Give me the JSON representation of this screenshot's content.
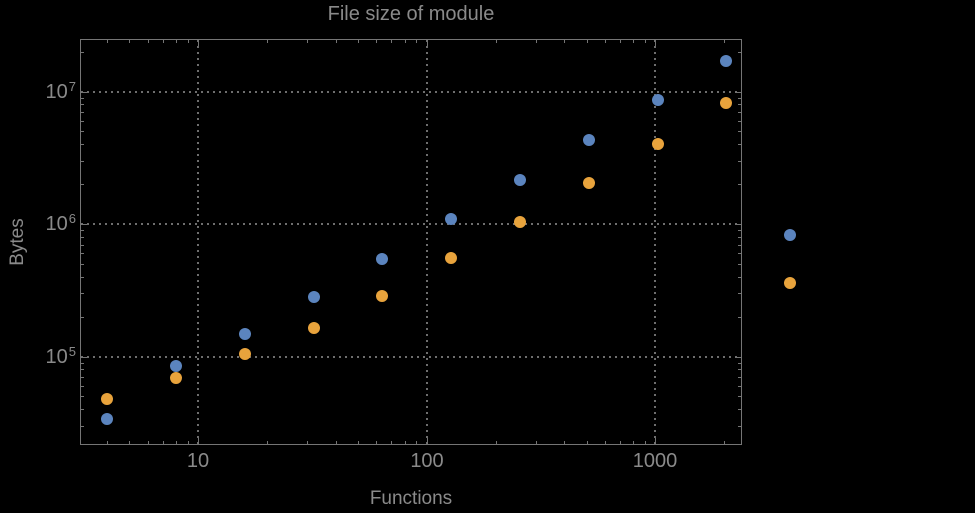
{
  "chart_data": {
    "type": "scatter",
    "title": "File size of module",
    "xlabel": "Functions",
    "ylabel": "Bytes",
    "x_scale": "log",
    "y_scale": "log",
    "legend": "none",
    "grid": "dotted gridlines at powers of 10, frame ticks on all four edges",
    "background_color": "#000000",
    "frame_color": "#757575",
    "grid_color": "#6E6E6E",
    "text_color": "#8A8A8A",
    "x": [
      4,
      8,
      16,
      32,
      64,
      128,
      256,
      512,
      1024,
      2048,
      3870
    ],
    "series": [
      {
        "name": "series-1-blue",
        "color": "#5B84BE",
        "values": [
          34000,
          85000,
          148000,
          283000,
          548000,
          1090000,
          2160000,
          4330000,
          8600000,
          17100000,
          820000
        ]
      },
      {
        "name": "series-2-orange",
        "color": "#E8A33C",
        "values": [
          48000,
          69000,
          105000,
          165000,
          285000,
          550000,
          1040000,
          2050000,
          4050000,
          8150000,
          360000
        ]
      }
    ],
    "x_ticks": [
      {
        "value": 10,
        "label": "10"
      },
      {
        "value": 100,
        "label": "100"
      },
      {
        "value": 1000,
        "label": "1000"
      }
    ],
    "y_ticks": [
      {
        "value": 100000,
        "base": "10",
        "exp": "5"
      },
      {
        "value": 1000000,
        "base": "10",
        "exp": "6"
      },
      {
        "value": 10000000,
        "base": "10",
        "exp": "7"
      }
    ],
    "xlim_log": [
      0.487,
      3.375
    ],
    "ylim_log": [
      4.34,
      7.389
    ],
    "plot_range_clipping": false
  }
}
